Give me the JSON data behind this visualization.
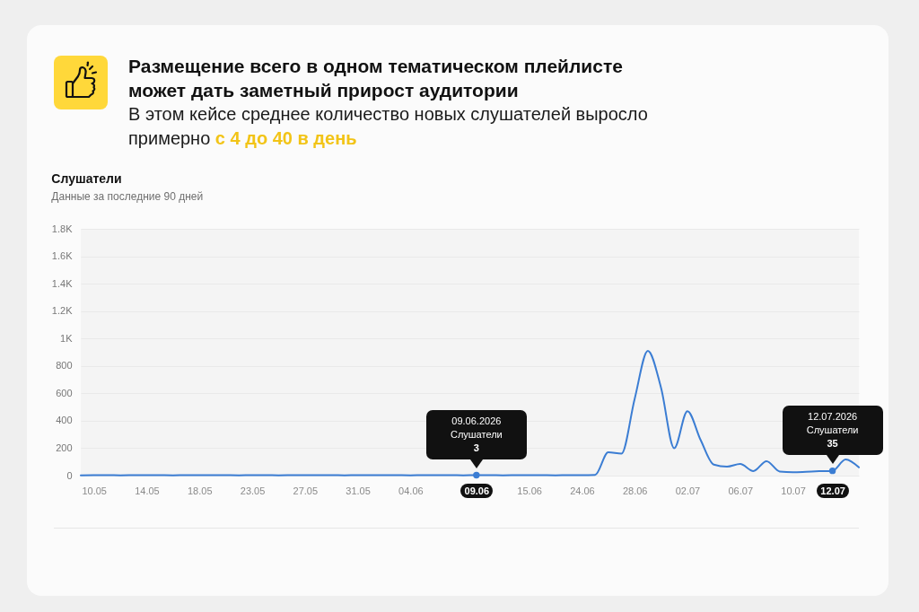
{
  "chart_data": {
    "type": "line",
    "title": "Слушатели",
    "subtitle": "Данные за последние 90 дней",
    "annotations": [
      "Размещение всего в одном тематическом плейлисте может дать заметный прирост аудитории",
      "В этом кейсе среднее количество новых слушателей выросло примерно",
      "с 4 до 40 в день",
      {
        "text": "09.06.2026\nСлушатели\n3",
        "x": "09.06",
        "y": 3
      },
      {
        "text": "12.07.2026\nСлушатели\n35",
        "x": "12.07",
        "y": 35
      }
    ],
    "categories": [
      null,
      "10.05",
      null,
      null,
      null,
      "14.05",
      null,
      null,
      null,
      "18.05",
      null,
      null,
      null,
      "23.05",
      null,
      null,
      null,
      "27.05",
      null,
      null,
      null,
      "31.05",
      null,
      null,
      null,
      "04.06",
      null,
      null,
      null,
      null,
      "09.06",
      null,
      null,
      null,
      "15.06",
      null,
      null,
      null,
      "24.06",
      null,
      null,
      null,
      "28.06",
      null,
      null,
      null,
      "02.07",
      null,
      null,
      null,
      "06.07",
      null,
      null,
      null,
      "10.07",
      null,
      null,
      "12.07",
      null,
      null
    ],
    "values": [
      2,
      3,
      3,
      2,
      3,
      4,
      3,
      2,
      3,
      3,
      4,
      3,
      2,
      3,
      3,
      2,
      3,
      4,
      3,
      3,
      2,
      3,
      3,
      4,
      3,
      2,
      3,
      3,
      3,
      2,
      3,
      3,
      2,
      3,
      4,
      3,
      2,
      3,
      3,
      5,
      170,
      160,
      560,
      910,
      640,
      200,
      470,
      260,
      80,
      65,
      85,
      33,
      105,
      30,
      25,
      28,
      32,
      35,
      118,
      60
    ],
    "color": "#3b7dd3",
    "ylim": [
      0,
      1800
    ],
    "yticks": [
      0,
      200,
      400,
      600,
      800,
      {
        "value": 1000,
        "label": "1K"
      },
      {
        "value": 1200,
        "label": "1.2K"
      },
      {
        "value": 1400,
        "label": "1.4K"
      },
      {
        "value": 1600,
        "label": "1.6K"
      },
      {
        "value": 1800,
        "label": "1.8K"
      }
    ],
    "grid": "y"
  }
}
